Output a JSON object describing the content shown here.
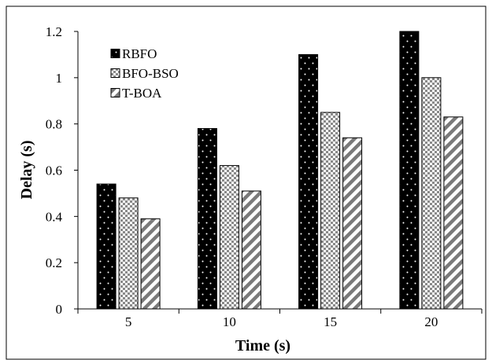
{
  "chart_data": {
    "type": "bar",
    "title": "",
    "xlabel": "Time (s)",
    "ylabel": "Delay (s)",
    "categories": [
      "5",
      "10",
      "15",
      "20"
    ],
    "ylim": [
      0,
      1.2
    ],
    "yticks": [
      "0",
      "0.2",
      "0.4",
      "0.6",
      "0.8",
      "1",
      "1.2"
    ],
    "grid": false,
    "legend_position": "top-left",
    "series": [
      {
        "name": "RBFO",
        "values": [
          0.54,
          0.78,
          1.1,
          1.2
        ],
        "pattern": "black-with-white-dots"
      },
      {
        "name": "BFO-BSO",
        "values": [
          0.48,
          0.62,
          0.85,
          1.0
        ],
        "pattern": "gray-checker"
      },
      {
        "name": "T-BOA",
        "values": [
          0.39,
          0.51,
          0.74,
          0.83
        ],
        "pattern": "diagonal-stripes"
      }
    ]
  }
}
